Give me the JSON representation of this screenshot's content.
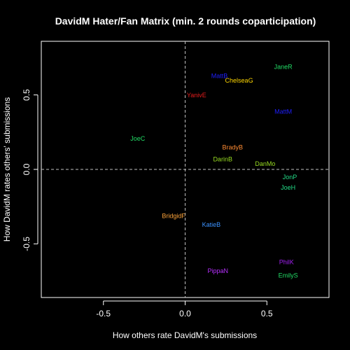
{
  "chart_data": {
    "type": "scatter",
    "title": "DavidM Hater/Fan Matrix (min. 2 rounds coparticipation)",
    "xlabel": "How others rate DavidM's submissions",
    "ylabel": "How DavidM rates others' submissions",
    "xlim": [
      -0.88,
      0.88
    ],
    "ylim": [
      -0.86,
      0.86
    ],
    "x_ticks": [
      -0.5,
      0.0,
      0.5
    ],
    "x_tick_labels": [
      "-0.5",
      "0.0",
      "0.5"
    ],
    "y_ticks": [
      -0.5,
      0.0,
      0.5
    ],
    "y_tick_labels": [
      "-0.5",
      "0.0",
      "0.5"
    ],
    "reference_lines": {
      "x": 0.0,
      "y": 0.0,
      "style": "dashed",
      "color": "#bfbfbf"
    },
    "grid": false,
    "background": "#000000",
    "foreground": "#ffffff",
    "points": [
      {
        "label": "JaneR",
        "x": 0.6,
        "y": 0.69,
        "color": "#22dd66"
      },
      {
        "label": "MattB",
        "x": 0.21,
        "y": 0.63,
        "color": "#1f1fff"
      },
      {
        "label": "ChelseaG",
        "x": 0.33,
        "y": 0.6,
        "color": "#ffd700"
      },
      {
        "label": "YanivE",
        "x": 0.07,
        "y": 0.5,
        "color": "#e81c1c"
      },
      {
        "label": "MattM",
        "x": 0.6,
        "y": 0.39,
        "color": "#1f1fff"
      },
      {
        "label": "JoeC",
        "x": -0.29,
        "y": 0.21,
        "color": "#22dd66"
      },
      {
        "label": "BradyB",
        "x": 0.29,
        "y": 0.15,
        "color": "#ff8c33"
      },
      {
        "label": "DarinB",
        "x": 0.23,
        "y": 0.07,
        "color": "#99dd22"
      },
      {
        "label": "DanMo",
        "x": 0.49,
        "y": 0.04,
        "color": "#99dd22"
      },
      {
        "label": "JonP",
        "x": 0.64,
        "y": -0.05,
        "color": "#22dd88"
      },
      {
        "label": "JoeH",
        "x": 0.63,
        "y": -0.12,
        "color": "#22dd88"
      },
      {
        "label": "BridgidF",
        "x": -0.07,
        "y": -0.31,
        "color": "#ffa53a"
      },
      {
        "label": "KatieB",
        "x": 0.16,
        "y": -0.37,
        "color": "#3c93ff"
      },
      {
        "label": "PhilK",
        "x": 0.62,
        "y": -0.62,
        "color": "#a020f0"
      },
      {
        "label": "PippaN",
        "x": 0.2,
        "y": -0.68,
        "color": "#b830ff"
      },
      {
        "label": "EmilyS",
        "x": 0.63,
        "y": -0.71,
        "color": "#22dd66"
      }
    ]
  }
}
